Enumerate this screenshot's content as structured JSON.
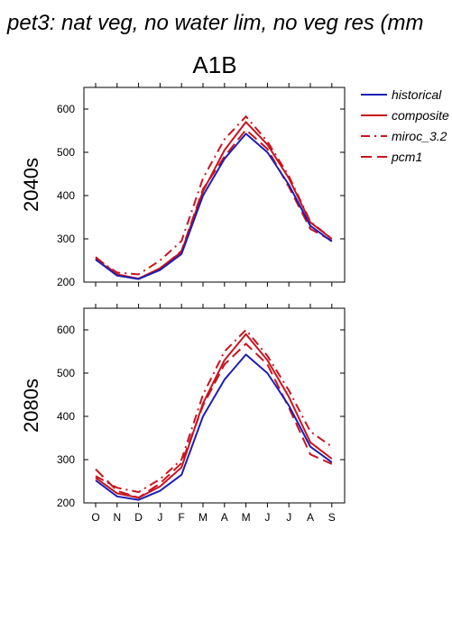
{
  "title": "pet3: nat veg, no water lim, no veg res (mm",
  "scenario": "A1B",
  "legend": [
    {
      "name": "historical",
      "color": "#1e1eb4",
      "dash": "solid"
    },
    {
      "name": "composite",
      "color": "#c8141e",
      "dash": "solid"
    },
    {
      "name": "miroc_3.2",
      "color": "#c8141e",
      "dash": "dashdot"
    },
    {
      "name": "pcm1",
      "color": "#c8141e",
      "dash": "dashed"
    }
  ],
  "chart_data": [
    {
      "type": "line",
      "row_label": "2040s",
      "categories": [
        "O",
        "N",
        "D",
        "J",
        "F",
        "M",
        "A",
        "M",
        "J",
        "J",
        "A",
        "S"
      ],
      "ylim": [
        200,
        650
      ],
      "yticks": [
        200,
        300,
        400,
        500,
        600
      ],
      "grid": false,
      "series": [
        {
          "name": "historical",
          "values": [
            252,
            215,
            207,
            228,
            265,
            400,
            485,
            543,
            500,
            425,
            330,
            294
          ]
        },
        {
          "name": "composite",
          "values": [
            252,
            218,
            208,
            232,
            270,
            410,
            505,
            570,
            518,
            440,
            338,
            300
          ]
        },
        {
          "name": "miroc_3.2",
          "values": [
            255,
            222,
            218,
            250,
            295,
            440,
            530,
            583,
            525,
            445,
            340,
            300
          ]
        },
        {
          "name": "pcm1",
          "values": [
            258,
            217,
            208,
            230,
            272,
            415,
            490,
            552,
            508,
            420,
            323,
            296
          ]
        }
      ]
    },
    {
      "type": "line",
      "row_label": "2080s",
      "categories": [
        "O",
        "N",
        "D",
        "J",
        "F",
        "M",
        "A",
        "M",
        "J",
        "J",
        "A",
        "S"
      ],
      "ylim": [
        200,
        650
      ],
      "yticks": [
        200,
        300,
        400,
        500,
        600
      ],
      "grid": false,
      "series": [
        {
          "name": "historical",
          "values": [
            252,
            215,
            207,
            228,
            265,
            400,
            485,
            543,
            500,
            425,
            330,
            294
          ]
        },
        {
          "name": "composite",
          "values": [
            258,
            222,
            212,
            238,
            282,
            430,
            530,
            590,
            530,
            445,
            340,
            302
          ]
        },
        {
          "name": "miroc_3.2",
          "values": [
            262,
            235,
            225,
            255,
            300,
            450,
            550,
            600,
            540,
            460,
            365,
            330
          ]
        },
        {
          "name": "pcm1",
          "values": [
            278,
            228,
            212,
            245,
            292,
            425,
            520,
            568,
            520,
            420,
            312,
            290
          ]
        }
      ]
    }
  ]
}
